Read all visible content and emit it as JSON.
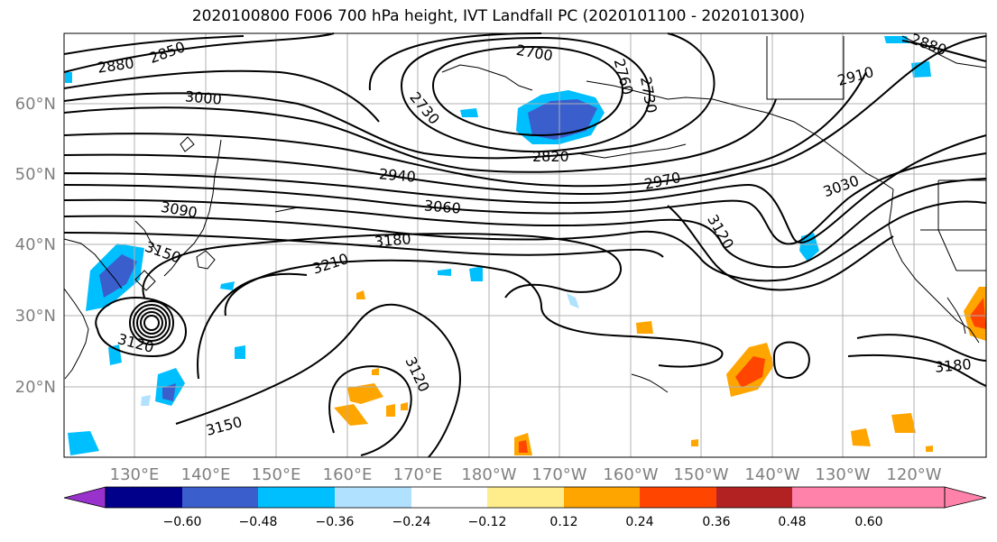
{
  "title": "2020100800 F006 700 hPa height, IVT Landfall PC (2020101100 - 2020101300)",
  "lat_labels": [
    "60°N",
    "50°N",
    "40°N",
    "30°N",
    "20°N"
  ],
  "lon_labels": [
    "130°E",
    "140°E",
    "150°E",
    "160°E",
    "170°E",
    "180°W",
    "170°W",
    "160°W",
    "150°W",
    "140°W",
    "130°W",
    "120°W"
  ],
  "contour_labels": [
    "2850",
    "2880",
    "3000",
    "2700",
    "2730",
    "2760",
    "2730",
    "2820",
    "2940",
    "2970",
    "3030",
    "2910",
    "2880",
    "3060",
    "3090",
    "3150",
    "3180",
    "3210",
    "3120",
    "3120",
    "3120",
    "3150",
    "3180"
  ],
  "colorbar": {
    "ticks": [
      "−0.60",
      "−0.48",
      "−0.36",
      "−0.24",
      "−0.12",
      "0.12",
      "0.24",
      "0.36",
      "0.48",
      "0.60"
    ],
    "colors": [
      "#9932cc",
      "#00008b",
      "#3a5fcd",
      "#00bfff",
      "#b0e2ff",
      "#ffffff",
      "#ffec8b",
      "#ffa500",
      "#ff4500",
      "#b22222",
      "#ff82ab"
    ]
  },
  "map": {
    "region": "North Pacific",
    "field_contours": "700 hPa geopotential height (m)",
    "field_shaded": "IVT Landfall PC"
  }
}
